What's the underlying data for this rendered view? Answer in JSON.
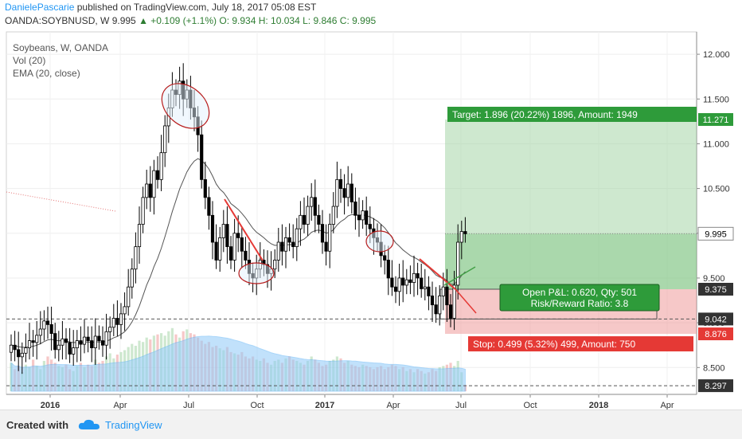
{
  "header": {
    "author": "DanielePascarie",
    "published": "published on TradingView.com, July 18, 2017 05:08 EST",
    "symbol": "OANDA:SOYBNUSD, W",
    "price": "9.995",
    "change": "▲ +0.109 (+1.1%)",
    "ohlc": "O: 9.934  H: 10.034  L: 9.846  C: 9.995"
  },
  "legend": {
    "line1": "Soybeans, W, OANDA",
    "line2": "Vol (20)",
    "line3": "EMA (20, close)"
  },
  "footer": {
    "created": "Created with",
    "brand": "TradingView"
  },
  "colors": {
    "up": "#ffffff",
    "down": "#000000",
    "ema": "#555555",
    "target_zone": "#a5d6a7",
    "stop_zone": "#ef9a9a",
    "price_label": "#ffffff"
  },
  "chart_data": {
    "type": "candlestick",
    "ylim": [
      8.2,
      12.25
    ],
    "x_ticks": [
      "2016",
      "Apr",
      "Jul",
      "Oct",
      "2017",
      "Apr",
      "Jul",
      "Oct",
      "2018",
      "Apr"
    ],
    "y_ticks": [
      12.0,
      11.5,
      11.0,
      10.5,
      10.0,
      9.5,
      9.0,
      8.5
    ],
    "price_labels": [
      {
        "value": 11.271,
        "label": "11.271",
        "kind": "target"
      },
      {
        "value": 9.995,
        "label": "9.995",
        "kind": "last"
      },
      {
        "value": 9.375,
        "label": "9.375",
        "kind": "entry"
      },
      {
        "value": 9.042,
        "label": "9.042",
        "kind": "plain"
      },
      {
        "value": 8.876,
        "label": "8.876",
        "kind": "stop"
      },
      {
        "value": 8.297,
        "label": "8.297",
        "kind": "plain"
      }
    ],
    "position": {
      "entry": 9.375,
      "target": 11.271,
      "stop": 8.876,
      "target_text": "Target: 1.896 (20.22%) 1896, Amount: 1949",
      "stop_text": "Stop: 0.499 (5.32%) 499, Amount: 750",
      "pnl_text": "Open P&L: 0.620, Qty: 501",
      "rr_text": "Risk/Reward Ratio: 3.8"
    },
    "horizontal_lines": [
      9.042,
      8.297
    ],
    "candles_close": [
      8.75,
      8.7,
      8.62,
      8.66,
      8.72,
      8.8,
      8.78,
      8.86,
      8.93,
      9.02,
      8.98,
      8.88,
      8.7,
      8.75,
      8.82,
      8.78,
      8.65,
      8.72,
      8.8,
      8.76,
      8.84,
      8.8,
      8.72,
      8.85,
      8.8,
      8.75,
      8.9,
      8.95,
      9.05,
      8.98,
      9.1,
      9.18,
      9.4,
      9.6,
      9.85,
      10.1,
      10.4,
      10.55,
      10.4,
      10.7,
      10.6,
      10.9,
      11.2,
      11.4,
      11.6,
      11.55,
      11.7,
      11.5,
      11.6,
      11.4,
      11.3,
      11.1,
      10.6,
      10.4,
      10.2,
      9.9,
      9.7,
      9.95,
      10.1,
      9.85,
      9.7,
      10.0,
      9.95,
      9.8,
      9.7,
      9.55,
      9.5,
      9.6,
      9.7,
      9.65,
      9.55,
      9.6,
      9.7,
      9.9,
      9.8,
      9.95,
      9.9,
      9.85,
      10.05,
      10.2,
      10.1,
      10.3,
      10.4,
      10.2,
      10.1,
      9.9,
      9.8,
      10.1,
      10.3,
      10.6,
      10.5,
      10.4,
      10.55,
      10.35,
      10.2,
      10.15,
      10.25,
      10.1,
      10.05,
      9.95,
      9.9,
      9.75,
      9.7,
      9.5,
      9.4,
      9.35,
      9.5,
      9.42,
      9.48,
      9.45,
      9.55,
      9.5,
      9.38,
      9.4,
      9.3,
      9.2,
      9.1,
      9.3,
      9.4,
      9.2,
      9.05,
      9.42,
      9.9,
      10.02,
      9.995
    ],
    "volume": [
      0.45,
      0.35,
      0.4,
      0.3,
      0.42,
      0.38,
      0.5,
      0.4,
      0.35,
      0.48,
      0.55,
      0.5,
      0.45,
      0.4,
      0.38,
      0.42,
      0.35,
      0.32,
      0.4,
      0.45,
      0.38,
      0.42,
      0.4,
      0.5,
      0.45,
      0.48,
      0.55,
      0.6,
      0.52,
      0.58,
      0.62,
      0.65,
      0.7,
      0.75,
      0.72,
      0.8,
      0.78,
      0.85,
      0.82,
      0.88,
      0.9,
      0.92,
      0.88,
      0.95,
      1.0,
      0.9,
      0.85,
      0.95,
      0.98,
      0.92,
      0.9,
      0.85,
      0.8,
      0.75,
      0.78,
      0.7,
      0.72,
      0.68,
      0.65,
      0.7,
      0.62,
      0.6,
      0.58,
      0.62,
      0.55,
      0.52,
      0.55,
      0.5,
      0.48,
      0.52,
      0.45,
      0.42,
      0.48,
      0.5,
      0.45,
      0.52,
      0.55,
      0.5,
      0.48,
      0.45,
      0.42,
      0.48,
      0.55,
      0.5,
      0.45,
      0.4,
      0.42,
      0.48,
      0.5,
      0.55,
      0.52,
      0.45,
      0.48,
      0.42,
      0.4,
      0.38,
      0.42,
      0.4,
      0.38,
      0.35,
      0.38,
      0.4,
      0.35,
      0.38,
      0.42,
      0.4,
      0.35,
      0.38,
      0.32,
      0.35,
      0.3,
      0.35,
      0.32,
      0.28,
      0.3,
      0.35,
      0.32,
      0.38,
      0.4,
      0.42,
      0.45,
      0.4,
      0.48,
      0.3,
      0.1
    ]
  }
}
